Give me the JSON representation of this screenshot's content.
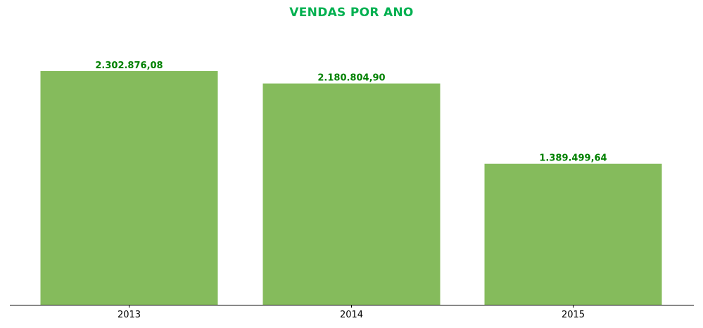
{
  "chart_data": {
    "type": "bar",
    "title": "VENDAS POR ANO",
    "categories": [
      "2013",
      "2014",
      "2015"
    ],
    "values": [
      2302876.08,
      2180804.9,
      1389499.64
    ],
    "value_labels": [
      "2.302.876,08",
      "2.180.804,90",
      "1.389.499,64"
    ],
    "xlabel": "",
    "ylabel": "",
    "ylim": [
      0,
      2500000
    ],
    "grid": false,
    "legend": "none"
  },
  "colors": {
    "title": "#00b050",
    "bar": "#85bb5c",
    "value_label": "#008000",
    "axis": "#000000"
  }
}
